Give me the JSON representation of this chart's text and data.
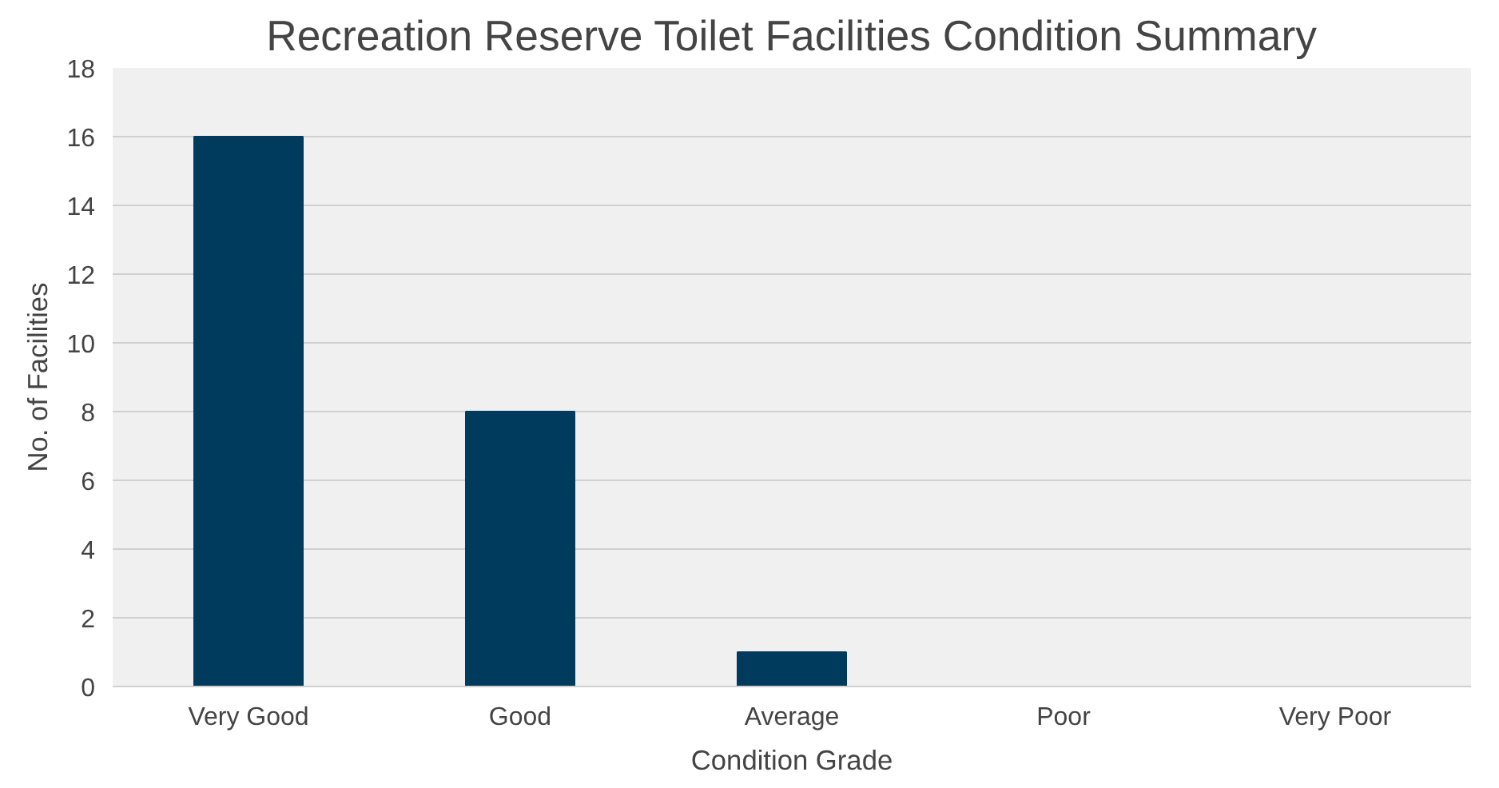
{
  "chart_data": {
    "type": "bar",
    "title": "Recreation Reserve Toilet Facilities Condition Summary",
    "xlabel": "Condition Grade",
    "ylabel": "No. of Facilities",
    "categories": [
      "Very Good",
      "Good",
      "Average",
      "Poor",
      "Very Poor"
    ],
    "values": [
      16,
      8,
      1,
      0,
      0
    ],
    "color": "#003a5c",
    "ylim": [
      0,
      18
    ],
    "yticks": [
      0,
      2,
      4,
      6,
      8,
      10,
      12,
      14,
      16,
      18
    ],
    "grid": "y"
  }
}
